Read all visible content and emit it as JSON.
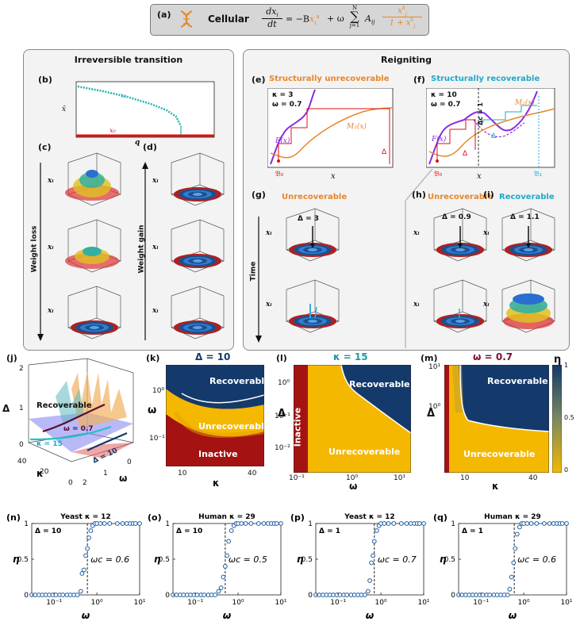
{
  "header": {
    "panel": "(a)",
    "label": "Cellular",
    "eq_lhs_num": "dx",
    "eq_lhs_num_sub": "i",
    "eq_lhs_den": "dt",
    "eq_term1": "= −B",
    "eq_term1_x": "x",
    "eq_term1_sub": "i",
    "eq_term1_sup": "a",
    "eq_omega": "+ ω",
    "eq_sum_top": "N",
    "eq_sum_bottom": "j=1",
    "eq_A": "A",
    "eq_A_sub": "ij",
    "eq_frac_num": "x",
    "eq_frac_num_sup": "h",
    "eq_frac_num_sub": "j",
    "eq_frac_den": "1 + x",
    "eq_frac_den_sup": "h",
    "eq_frac_den_sub": "j"
  },
  "left_box": {
    "title": "Irreversible transition",
    "b_label": "(b)",
    "b_ylabel": "x̄",
    "b_xlabel": "q",
    "b_x1": "x₁",
    "b_x0": "x₀",
    "c_label": "(c)",
    "d_label": "(d)",
    "weight_loss": "Weight loss",
    "weight_gain": "Weight gain",
    "xi": "xᵢ"
  },
  "right_box": {
    "title": "Reigniting",
    "e_label": "(e)",
    "e_title": "Structurally unrecoverable",
    "e_kappa": "κ = 3",
    "e_omega": "ω = 0.7",
    "e_F": "F(x)",
    "e_M": "M₂(x)",
    "e_delta": "Δ",
    "e_B0": "𝔅₀",
    "e_x": "x",
    "f_label": "(f)",
    "f_title": "Structurally recoverable",
    "f_kappa": "κ = 10",
    "f_omega": "ω = 0.7",
    "f_deltac": "Δc = 1",
    "f_F": "F(x)",
    "f_M": "M₂(x)",
    "f_delta_red": "Δ",
    "f_delta_cyan": "Δ",
    "f_B0": "𝔅₀",
    "f_B1": "𝔅₁",
    "f_x": "x",
    "g_label": "(g)",
    "g_title": "Unrecoverable",
    "g_delta": "Δ = 3",
    "time": "Time",
    "h_label": "(h)",
    "h_title": "Unrecoverable",
    "h_delta": "Δ = 0.9",
    "i_label": "(i)",
    "i_title": "Recoverable",
    "i_delta": "Δ = 1.1",
    "xi": "xᵢ"
  },
  "panel_j": {
    "label": "(j)",
    "recoverable": "Recoverable",
    "omega_curve": "ω = 0.7",
    "kappa_curve": "κ = 15",
    "delta_curve": "Δ = 10",
    "ylabel": "Δ",
    "xlabel_kappa": "κ",
    "xlabel_omega": "ω",
    "yticks": [
      "0",
      "1",
      "2"
    ],
    "kticks": [
      "40",
      "20",
      "0"
    ],
    "wticks": [
      "2",
      "1",
      "0"
    ]
  },
  "panel_k": {
    "label": "(k)",
    "title": "Δ = 10",
    "recoverable": "Recoverable",
    "unrecoverable": "Unrecoverable",
    "inactive": "Inactive",
    "ylabel": "ω",
    "xlabel": "κ",
    "yticks": [
      "10⁰",
      "10⁻¹"
    ],
    "xticks": [
      "10",
      "40"
    ]
  },
  "panel_l": {
    "label": "(l)",
    "title": "κ = 15",
    "recoverable": "Recoverable",
    "unrecoverable": "Unrecoverable",
    "inactive": "Inactive",
    "ylabel": "Δ",
    "xlabel": "ω",
    "yticks": [
      "10⁰",
      "10⁻¹",
      "10⁻²"
    ],
    "xticks": [
      "10⁻¹",
      "10⁰",
      "10¹"
    ]
  },
  "panel_m": {
    "label": "(m)",
    "title": "ω = 0.7",
    "recoverable": "Recoverable",
    "unrecoverable": "Unrecoverable",
    "ylabel": "Δ",
    "xlabel": "κ",
    "yticks": [
      "10¹",
      "10⁰"
    ],
    "xticks": [
      "10",
      "40"
    ],
    "cbar_label": "η",
    "cbar_ticks": [
      "1",
      "0.5",
      "0"
    ]
  },
  "colors": {
    "navy": "#143a6b",
    "yellow": "#f5b800",
    "red": "#a51212",
    "orange": "#e8862a",
    "cyan": "#1fa9c9",
    "purple": "#8a2be2",
    "teal": "#26b3b3"
  },
  "chart_data": [
    {
      "type": "scatter",
      "label": "(n)",
      "title": "Yeast κ = 12",
      "inner": "Δ = 10",
      "omega_c_text": "ωc = 0.6",
      "omega_c": 0.6,
      "xlabel": "ω",
      "ylabel": "η",
      "xlim": [
        0.03,
        10
      ],
      "ylim": [
        0,
        1
      ],
      "x": [
        0.03,
        0.036,
        0.044,
        0.053,
        0.064,
        0.077,
        0.093,
        0.11,
        0.135,
        0.16,
        0.2,
        0.24,
        0.29,
        0.35,
        0.42,
        0.45,
        0.5,
        0.55,
        0.6,
        0.65,
        0.72,
        0.8,
        0.9,
        1.0,
        1.2,
        1.5,
        2,
        3,
        4,
        5,
        6,
        7,
        8,
        10
      ],
      "y": [
        0,
        0,
        0,
        0,
        0,
        0,
        0,
        0,
        0,
        0,
        0,
        0,
        0,
        0,
        0.05,
        0.3,
        0.35,
        0.55,
        0.65,
        0.8,
        0.9,
        0.97,
        1,
        1,
        1,
        1,
        1,
        1,
        1,
        1,
        1,
        1,
        1,
        1
      ],
      "xticks": [
        "10⁻¹",
        "10⁰",
        "10¹"
      ],
      "yticks": [
        "0",
        "0.5",
        "1"
      ]
    },
    {
      "type": "scatter",
      "label": "(o)",
      "title": "Human κ = 29",
      "inner": "Δ = 10",
      "omega_c_text": "ωc = 0.5",
      "omega_c": 0.5,
      "xlabel": "ω",
      "ylabel": "η",
      "xlim": [
        0.03,
        10
      ],
      "ylim": [
        0,
        1
      ],
      "x": [
        0.03,
        0.036,
        0.044,
        0.053,
        0.064,
        0.077,
        0.093,
        0.11,
        0.135,
        0.16,
        0.2,
        0.24,
        0.29,
        0.35,
        0.4,
        0.45,
        0.5,
        0.55,
        0.6,
        0.7,
        0.8,
        0.9,
        1.0,
        1.2,
        1.5,
        2,
        3,
        4,
        5,
        6,
        7,
        8,
        10
      ],
      "y": [
        0,
        0,
        0,
        0,
        0,
        0,
        0,
        0,
        0,
        0,
        0,
        0,
        0,
        0.05,
        0.1,
        0.25,
        0.4,
        0.55,
        0.75,
        0.9,
        0.97,
        1,
        1,
        1,
        1,
        1,
        1,
        1,
        1,
        1,
        1,
        1,
        1
      ],
      "xticks": [
        "10⁻¹",
        "10⁰",
        "10¹"
      ],
      "yticks": [
        "0",
        "0.5",
        "1"
      ]
    },
    {
      "type": "scatter",
      "label": "(p)",
      "title": "Yeast κ = 12",
      "inner": "Δ = 1",
      "omega_c_text": "ωc = 0.7",
      "omega_c": 0.7,
      "xlabel": "ω",
      "ylabel": "η",
      "xlim": [
        0.03,
        10
      ],
      "ylim": [
        0,
        1
      ],
      "x": [
        0.03,
        0.036,
        0.044,
        0.053,
        0.064,
        0.077,
        0.093,
        0.11,
        0.135,
        0.16,
        0.2,
        0.24,
        0.29,
        0.35,
        0.42,
        0.5,
        0.55,
        0.6,
        0.65,
        0.7,
        0.8,
        0.9,
        1.0,
        1.2,
        1.5,
        2,
        3,
        4,
        5,
        6,
        7,
        8,
        10
      ],
      "y": [
        0,
        0,
        0,
        0,
        0,
        0,
        0,
        0,
        0,
        0,
        0,
        0,
        0,
        0,
        0,
        0.05,
        0.2,
        0.45,
        0.55,
        0.75,
        0.9,
        0.97,
        1,
        1,
        1,
        1,
        1,
        1,
        1,
        1,
        1,
        1,
        1
      ],
      "xticks": [
        "10⁻¹",
        "10⁰",
        "10¹"
      ],
      "yticks": [
        "0",
        "0.5",
        "1"
      ]
    },
    {
      "type": "scatter",
      "label": "(q)",
      "title": "Human κ = 29",
      "inner": "Δ = 1",
      "omega_c_text": "ωc = 0.6",
      "omega_c": 0.6,
      "xlabel": "ω",
      "ylabel": "η",
      "xlim": [
        0.03,
        10
      ],
      "ylim": [
        0,
        1
      ],
      "x": [
        0.03,
        0.036,
        0.044,
        0.053,
        0.064,
        0.077,
        0.093,
        0.11,
        0.135,
        0.16,
        0.2,
        0.24,
        0.29,
        0.35,
        0.42,
        0.47,
        0.52,
        0.58,
        0.63,
        0.7,
        0.8,
        0.9,
        1.0,
        1.2,
        1.5,
        2,
        3,
        4,
        5,
        6,
        7,
        8,
        10
      ],
      "y": [
        0,
        0,
        0,
        0,
        0,
        0,
        0,
        0,
        0,
        0,
        0,
        0,
        0,
        0,
        0,
        0.08,
        0.25,
        0.45,
        0.65,
        0.85,
        0.95,
        1,
        1,
        1,
        1,
        1,
        1,
        1,
        1,
        1,
        1,
        1,
        1
      ],
      "xticks": [
        "10⁻¹",
        "10⁰",
        "10¹"
      ],
      "yticks": [
        "0",
        "0.5",
        "1"
      ]
    }
  ]
}
